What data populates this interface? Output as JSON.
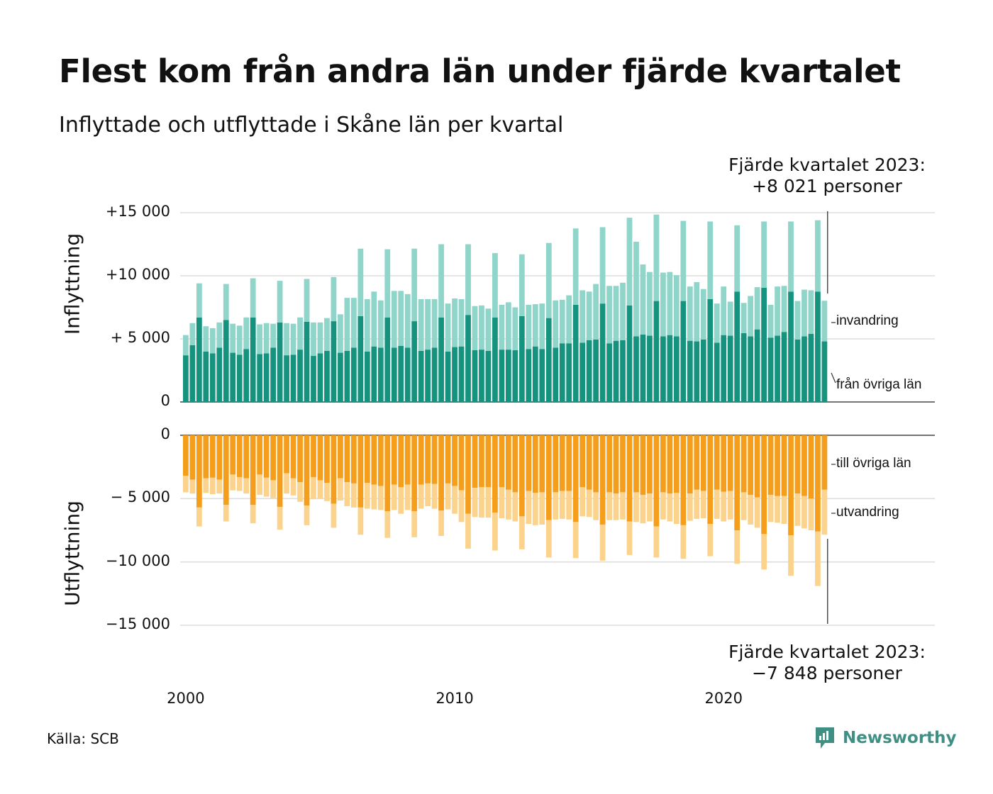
{
  "title": "Flest kom från andra län under fjärde kvartalet",
  "subtitle": "Inflyttade och utflyttade i Skåne län per kvartal",
  "annotation_top": {
    "line1": "Fjärde kvartalet 2023:",
    "line2": "+8 021 personer"
  },
  "annotation_bottom": {
    "line1": "Fjärde kvartalet 2023:",
    "line2": "−7 848 personer"
  },
  "source": "Källa: SCB",
  "brand": "Newsworthy",
  "colors": {
    "fran_ovriga_lan": "#16937f",
    "invandring": "#8fd5ca",
    "till_ovriga_lan": "#f59e1c",
    "utvandring": "#fbd38d",
    "grid": "#dddddd",
    "brand": "#3f8f84"
  },
  "chart_data": [
    {
      "type": "bar",
      "stacked": true,
      "ylabel": "Inflyttning",
      "ylim": [
        0,
        15000
      ],
      "yticks": [
        0,
        5000,
        10000,
        15000
      ],
      "ytick_labels": [
        "0",
        "+ 5 000",
        "+10 000",
        "+15 000"
      ],
      "x_labels": [
        "2000",
        "2010",
        "2020"
      ],
      "legend": "right",
      "series": [
        {
          "name": "från övriga län",
          "values": [
            3700,
            4500,
            6700,
            4000,
            3850,
            4300,
            6500,
            3900,
            3750,
            4200,
            6700,
            3800,
            3850,
            4300,
            6300,
            3700,
            3750,
            4150,
            6350,
            3650,
            3850,
            4050,
            6400,
            3900,
            4050,
            4300,
            6800,
            4000,
            4400,
            4300,
            6700,
            4300,
            4450,
            4300,
            6400,
            4050,
            4150,
            4300,
            6700,
            4000,
            4350,
            4400,
            6900,
            4100,
            4150,
            4050,
            6700,
            4150,
            4150,
            4100,
            6800,
            4200,
            4400,
            4200,
            6650,
            4300,
            4650,
            4650,
            7700,
            4700,
            4900,
            4950,
            7800,
            4650,
            4850,
            4900,
            7650,
            5200,
            5350,
            5250,
            8000,
            5200,
            5300,
            5200,
            8000,
            4850,
            4800,
            4950,
            8150,
            4700,
            5300,
            5250,
            8750,
            5450,
            5200,
            5750,
            9050,
            5100,
            5250,
            5550,
            8750,
            4950,
            5200,
            5400,
            8750,
            4800
          ]
        },
        {
          "name": "invandring",
          "values": [
            1600,
            1750,
            2700,
            2000,
            2000,
            2000,
            2850,
            2300,
            2300,
            2500,
            3100,
            2350,
            2400,
            1900,
            3300,
            2550,
            2450,
            2550,
            3400,
            2650,
            2450,
            2600,
            3500,
            3050,
            4200,
            3950,
            5350,
            4150,
            4350,
            3750,
            5400,
            4500,
            4350,
            4250,
            5750,
            4100,
            4000,
            3850,
            5800,
            3800,
            3850,
            3750,
            5600,
            3500,
            3500,
            3350,
            5100,
            3550,
            3750,
            3400,
            4900,
            3500,
            3350,
            3600,
            5950,
            3750,
            3450,
            3800,
            6050,
            4150,
            3850,
            4400,
            6050,
            4550,
            4350,
            4550,
            6950,
            7500,
            5550,
            5050,
            6850,
            5050,
            5000,
            4850,
            6350,
            4300,
            4700,
            4000,
            6150,
            3100,
            3850,
            2700,
            5250,
            2400,
            3200,
            3350,
            5250,
            2600,
            3900,
            3650,
            5550,
            3050,
            3700,
            3450,
            5650,
            3221
          ]
        }
      ]
    },
    {
      "type": "bar",
      "stacked": true,
      "ylabel": "Utflyttning",
      "ylim": [
        -15000,
        0
      ],
      "yticks": [
        0,
        -5000,
        -10000,
        -15000
      ],
      "ytick_labels": [
        "0",
        "− 5 000",
        "−10 000",
        "−15 000"
      ],
      "x_labels": [
        "2000",
        "2010",
        "2020"
      ],
      "legend": "right",
      "series": [
        {
          "name": "till övriga län",
          "values": [
            -3200,
            -3500,
            -5700,
            -3400,
            -3350,
            -3500,
            -5500,
            -3100,
            -3300,
            -3400,
            -5500,
            -3100,
            -3350,
            -3550,
            -5650,
            -3000,
            -3400,
            -3700,
            -5550,
            -3300,
            -3550,
            -3750,
            -5400,
            -3400,
            -3700,
            -3800,
            -5700,
            -3750,
            -3900,
            -4000,
            -6000,
            -3900,
            -4100,
            -3900,
            -6000,
            -3900,
            -3800,
            -3850,
            -5950,
            -3800,
            -4000,
            -4350,
            -6200,
            -4150,
            -4100,
            -4100,
            -6100,
            -4100,
            -4300,
            -4500,
            -6400,
            -4400,
            -4550,
            -4500,
            -6700,
            -4500,
            -4400,
            -4400,
            -6850,
            -4100,
            -4300,
            -4500,
            -7050,
            -4500,
            -4600,
            -4500,
            -6800,
            -4500,
            -4700,
            -4600,
            -7200,
            -4500,
            -4600,
            -4550,
            -7100,
            -4600,
            -4300,
            -4400,
            -7000,
            -4300,
            -4450,
            -4400,
            -7500,
            -4500,
            -4700,
            -4900,
            -7800,
            -4700,
            -4800,
            -4800,
            -7900,
            -4600,
            -4800,
            -5000,
            -7600,
            -4300
          ]
        },
        {
          "name": "utvandring",
          "values": [
            -1300,
            -1100,
            -1500,
            -1150,
            -1300,
            -1100,
            -1300,
            -1250,
            -1100,
            -1200,
            -1450,
            -1600,
            -1500,
            -1400,
            -1800,
            -1600,
            -1350,
            -1550,
            -1550,
            -1750,
            -1450,
            -1450,
            -1900,
            -1750,
            -1900,
            -1900,
            -2150,
            -2050,
            -1950,
            -1900,
            -2100,
            -2000,
            -2100,
            -2000,
            -2050,
            -1900,
            -1800,
            -1950,
            -2000,
            -2050,
            -2200,
            -2500,
            -2750,
            -2300,
            -2400,
            -2400,
            -3000,
            -2450,
            -2350,
            -2300,
            -2600,
            -2600,
            -2550,
            -2550,
            -2950,
            -2150,
            -2200,
            -2250,
            -2850,
            -2300,
            -2150,
            -2200,
            -2850,
            -2200,
            -2100,
            -2150,
            -2650,
            -2350,
            -2250,
            -2200,
            -2450,
            -2150,
            -2200,
            -2450,
            -2650,
            -2150,
            -2300,
            -2150,
            -2550,
            -2300,
            -2350,
            -2250,
            -2650,
            -2200,
            -2350,
            -2400,
            -2800,
            -2150,
            -2100,
            -2200,
            -3200,
            -2550,
            -2550,
            -2500,
            -4300,
            -3548
          ]
        }
      ]
    }
  ]
}
